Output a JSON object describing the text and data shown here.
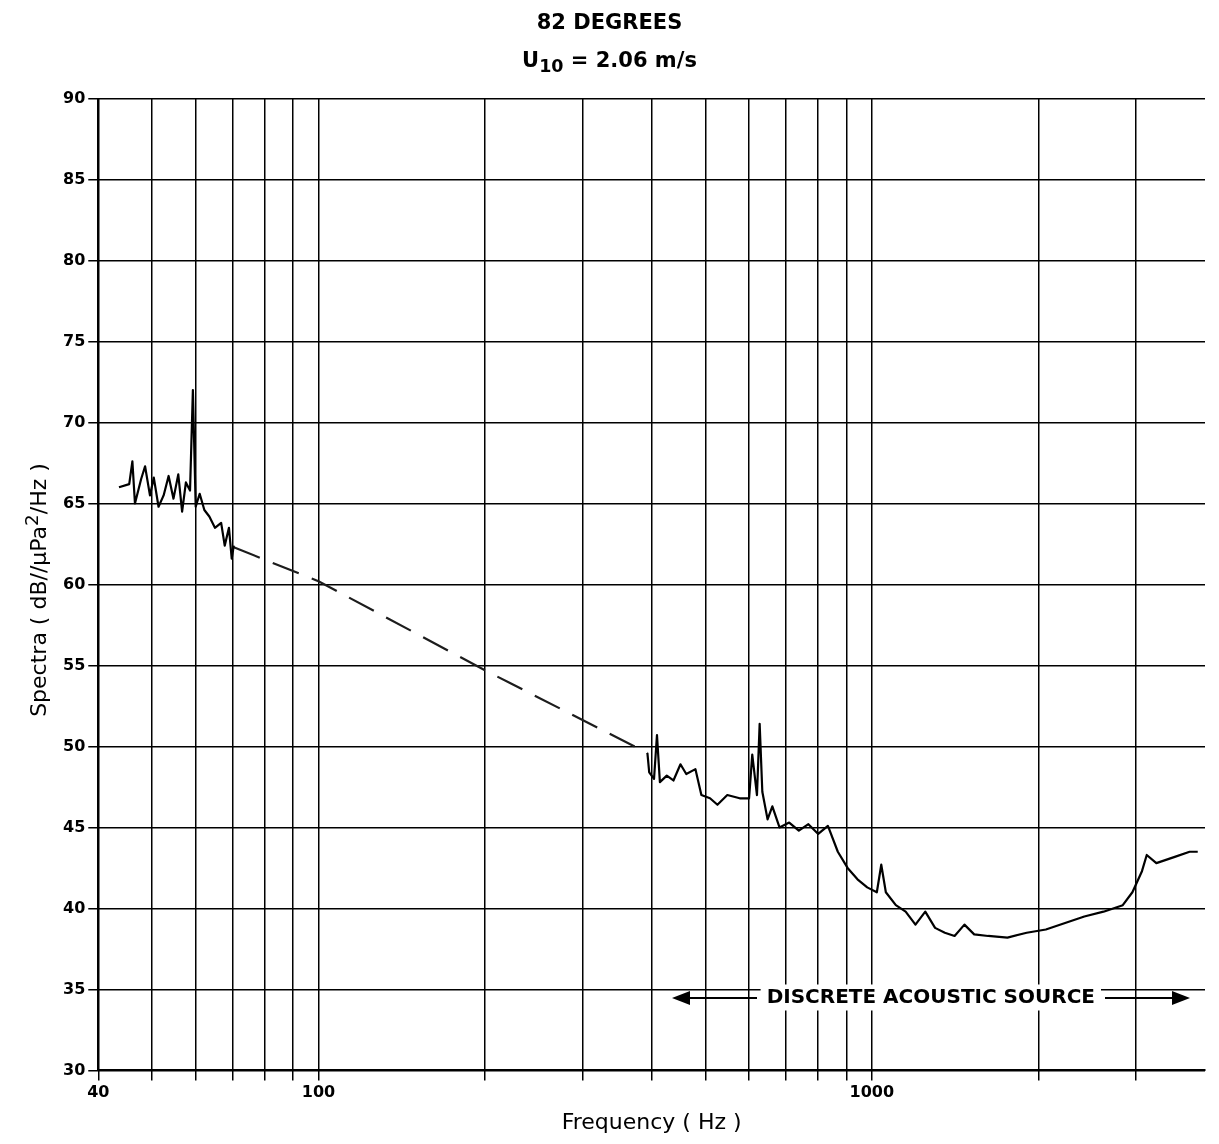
{
  "chart_data": {
    "type": "line",
    "title": "82 DEGREES",
    "subtitle": "U$_{10}$ = 2.06 m/s",
    "xlabel": "Frequency ( Hz )",
    "ylabel": "Spectra ( dB//μPa$^{2}$/Hz )",
    "log": "x",
    "xlim": [
      40,
      4000
    ],
    "ylim": [
      30,
      90
    ],
    "xticks": [
      40,
      {
        "value": 50,
        "label": null
      },
      {
        "value": 60,
        "label": null
      },
      {
        "value": 70,
        "label": null
      },
      {
        "value": 80,
        "label": null
      },
      {
        "value": 90,
        "label": null
      },
      100,
      {
        "value": 200,
        "label": null
      },
      {
        "value": 300,
        "label": null
      },
      {
        "value": 400,
        "label": null
      },
      {
        "value": 500,
        "label": null
      },
      {
        "value": 600,
        "label": null
      },
      {
        "value": 700,
        "label": null
      },
      {
        "value": 800,
        "label": null
      },
      {
        "value": 900,
        "label": null
      },
      1000,
      {
        "value": 2000,
        "label": null
      },
      {
        "value": 3000,
        "label": null
      }
    ],
    "yticks": [
      30,
      35,
      40,
      45,
      50,
      55,
      60,
      65,
      70,
      75,
      80,
      85,
      90
    ],
    "grid": true,
    "marker": "none",
    "annotations": [
      "DISCRETE ACOUSTIC SOURCE"
    ],
    "series": [
      {
        "color": "#000000",
        "line_style": "solid",
        "x": [
          43.6,
          45.5,
          46.1,
          46.6,
          47.8,
          48.6,
          49.6,
          50.4,
          51.4,
          52.5,
          53.6,
          54.7,
          55.8,
          56.7,
          57.6,
          58.6,
          59.3,
          60.0,
          61.0,
          62.2,
          63.5,
          65.0,
          66.7,
          67.7,
          68.9,
          69.7,
          70.3,
          200,
          393,
          396,
          404,
          409,
          414,
          426,
          438,
          451,
          462,
          480,
          492,
          510,
          526,
          548,
          577,
          600,
          608,
          620,
          627,
          634,
          648,
          661,
          681,
          709,
          738,
          768,
          800,
          833,
          868,
          904,
          942,
          981,
          1021,
          1040,
          1060,
          1105,
          1151,
          1199,
          1249,
          1301,
          1355,
          1411,
          1470,
          1531,
          1623,
          1758,
          1905,
          2063,
          2235,
          2421,
          2622,
          2841,
          2957,
          3077,
          3139,
          3267,
          3400,
          3538,
          3752,
          3881
        ],
        "values": [
          66.0,
          66.2,
          67.6,
          65.0,
          66.5,
          67.3,
          65.5,
          66.6,
          64.8,
          65.5,
          66.7,
          65.3,
          66.8,
          64.5,
          66.3,
          65.8,
          72.0,
          64.8,
          65.6,
          64.6,
          64.2,
          63.5,
          63.8,
          62.4,
          63.5,
          61.6,
          62.4,
          null,
          49.6,
          48.4,
          48.0,
          50.7,
          47.8,
          48.2,
          47.9,
          48.9,
          48.3,
          48.6,
          47.0,
          46.8,
          46.4,
          47.0,
          46.8,
          46.8,
          49.5,
          47.0,
          51.4,
          47.2,
          45.5,
          46.3,
          45.0,
          45.3,
          44.8,
          45.2,
          44.6,
          45.1,
          43.5,
          42.5,
          41.8,
          41.3,
          41.0,
          42.7,
          41.0,
          40.2,
          39.8,
          39.0,
          39.8,
          38.8,
          38.5,
          38.3,
          39.0,
          38.4,
          38.3,
          38.2,
          38.5,
          38.7,
          39.1,
          39.5,
          39.8,
          40.2,
          41.0,
          42.3,
          43.3,
          42.8,
          43.0,
          43.2,
          43.5,
          43.5
        ]
      },
      {
        "color": "#1c1c1c",
        "line_style": "dashed",
        "x": [
          70.3,
          100,
          200,
          393
        ],
        "values": [
          62.3,
          60.2,
          54.7,
          49.6
        ]
      }
    ]
  }
}
